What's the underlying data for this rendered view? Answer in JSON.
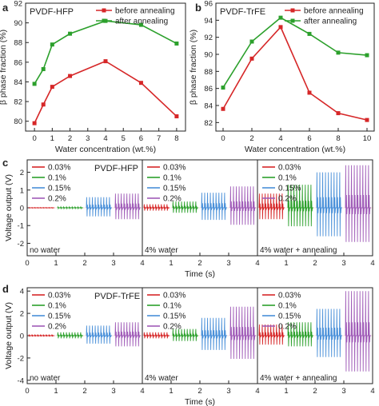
{
  "colors": {
    "red": "#d62728",
    "green": "#2ca02c",
    "blue": "#4a90d9",
    "purple": "#a05cb8"
  },
  "panels": {
    "a": {
      "letter": "a",
      "tag": "PVDF-HFP"
    },
    "b": {
      "letter": "b",
      "tag": "PVDF-TrFE"
    },
    "c": {
      "letter": "c",
      "tag": "PVDF-HFP"
    },
    "d": {
      "letter": "d",
      "tag": "PVDF-TrFE"
    }
  },
  "chart_data": [
    {
      "id": "a",
      "type": "line",
      "xlabel": "Water concentration (wt.%)",
      "ylabel": "β phase fraction (%)",
      "xlim": [
        -0.5,
        8.5
      ],
      "ylim": [
        79,
        92
      ],
      "xticks": [
        0,
        1,
        2,
        3,
        4,
        5,
        6,
        7,
        8
      ],
      "yticks": [
        80,
        82,
        84,
        86,
        88,
        90,
        92
      ],
      "legend": "top-right",
      "series": [
        {
          "name": "before annealing",
          "color": "#d62728",
          "x": [
            0,
            0.5,
            1,
            2,
            4,
            6,
            8
          ],
          "y": [
            79.8,
            81.7,
            83.5,
            84.6,
            86.1,
            83.9,
            80.5
          ]
        },
        {
          "name": "after annealing",
          "color": "#2ca02c",
          "x": [
            0,
            0.5,
            1,
            2,
            4,
            6,
            8
          ],
          "y": [
            83.8,
            85.3,
            87.8,
            88.9,
            90.2,
            89.8,
            87.9
          ]
        }
      ]
    },
    {
      "id": "b",
      "type": "line",
      "xlabel": "Water concentration (wt.%)",
      "ylabel": "β phase fraction (%)",
      "xlim": [
        -0.5,
        10.5
      ],
      "ylim": [
        81,
        96
      ],
      "xticks": [
        0,
        2,
        4,
        6,
        8,
        10
      ],
      "yticks": [
        82,
        84,
        86,
        88,
        90,
        92,
        94,
        96
      ],
      "legend": "top-right",
      "series": [
        {
          "name": "before annealing",
          "color": "#d62728",
          "x": [
            0,
            2,
            4,
            6,
            8,
            10
          ],
          "y": [
            83.6,
            89.5,
            93.2,
            85.5,
            83.1,
            82.3
          ]
        },
        {
          "name": "after annealing",
          "color": "#2ca02c",
          "x": [
            0,
            2,
            4,
            6,
            8,
            10
          ],
          "y": [
            86.1,
            91.5,
            94.3,
            92.4,
            90.2,
            89.9
          ]
        }
      ]
    },
    {
      "id": "c",
      "type": "line",
      "xlabel": "Time (s)",
      "ylabel": "Voltage output (V)",
      "ylim": [
        -2.7,
        2.7
      ],
      "yticks": [
        -2,
        -1,
        0,
        1,
        2
      ],
      "subpanels": [
        {
          "label": "no water",
          "xlim": [
            0,
            4
          ],
          "xticks": [
            0,
            1,
            2,
            3,
            4
          ],
          "amplitudes": [
            {
              "name": "0.03%",
              "x": [
                0,
                1
              ],
              "amp": 0.02
            },
            {
              "name": "0.1%",
              "x": [
                1,
                2
              ],
              "amp": 0.05
            },
            {
              "name": "0.15%",
              "x": [
                2,
                3
              ],
              "amp": 0.6
            },
            {
              "name": "0.2%",
              "x": [
                3,
                4
              ],
              "amp": 0.8
            }
          ]
        },
        {
          "label": "4% water",
          "xlim": [
            0,
            4
          ],
          "xticks": [
            1,
            2,
            3,
            4
          ],
          "amplitudes": [
            {
              "name": "0.03%",
              "x": [
                0,
                1
              ],
              "amp": 0.2
            },
            {
              "name": "0.1%",
              "x": [
                1,
                2
              ],
              "amp": 0.35
            },
            {
              "name": "0.15%",
              "x": [
                2,
                3
              ],
              "amp": 0.85
            },
            {
              "name": "0.2%",
              "x": [
                3,
                4
              ],
              "amp": 1.2
            }
          ]
        },
        {
          "label": "4% water + annealing",
          "xlim": [
            0,
            4
          ],
          "xticks": [
            1,
            2,
            3,
            4
          ],
          "amplitudes": [
            {
              "name": "0.03%",
              "x": [
                0,
                1
              ],
              "amp": 0.8
            },
            {
              "name": "0.1%",
              "x": [
                1,
                2
              ],
              "amp": 1.3
            },
            {
              "name": "0.15%",
              "x": [
                2,
                3
              ],
              "amp": 2.0
            },
            {
              "name": "0.2%",
              "x": [
                3,
                4
              ],
              "amp": 2.4
            }
          ]
        }
      ],
      "legend": [
        "0.03%",
        "0.1%",
        "0.15%",
        "0.2%"
      ]
    },
    {
      "id": "d",
      "type": "line",
      "xlabel": "Time (s)",
      "ylabel": "Voltage output (V)",
      "ylim": [
        -4.3,
        4.3
      ],
      "yticks": [
        -4,
        -2,
        0,
        2,
        4
      ],
      "subpanels": [
        {
          "label": "no water",
          "xlim": [
            0,
            4
          ],
          "xticks": [
            0,
            1,
            2,
            3,
            4
          ],
          "amplitudes": [
            {
              "name": "0.03%",
              "x": [
                0,
                1
              ],
              "amp": 0.1
            },
            {
              "name": "0.1%",
              "x": [
                1,
                2
              ],
              "amp": 0.3
            },
            {
              "name": "0.15%",
              "x": [
                2,
                3
              ],
              "amp": 0.9
            },
            {
              "name": "0.2%",
              "x": [
                3,
                4
              ],
              "amp": 1.2
            }
          ]
        },
        {
          "label": "4% water",
          "xlim": [
            0,
            4
          ],
          "xticks": [
            1,
            2,
            3,
            4
          ],
          "amplitudes": [
            {
              "name": "0.03%",
              "x": [
                0,
                1
              ],
              "amp": 0.3
            },
            {
              "name": "0.1%",
              "x": [
                1,
                2
              ],
              "amp": 0.6
            },
            {
              "name": "0.15%",
              "x": [
                2,
                3
              ],
              "amp": 1.6
            },
            {
              "name": "0.2%",
              "x": [
                3,
                4
              ],
              "amp": 2.6
            }
          ]
        },
        {
          "label": "4% water + annealing",
          "xlim": [
            0,
            4
          ],
          "xticks": [
            1,
            2,
            3,
            4
          ],
          "amplitudes": [
            {
              "name": "0.03%",
              "x": [
                0,
                1
              ],
              "amp": 1.0
            },
            {
              "name": "0.1%",
              "x": [
                1,
                2
              ],
              "amp": 1.2
            },
            {
              "name": "0.15%",
              "x": [
                2,
                3
              ],
              "amp": 2.4
            },
            {
              "name": "0.2%",
              "x": [
                3,
                4
              ],
              "amp": 4.0
            }
          ]
        }
      ],
      "legend": [
        "0.03%",
        "0.1%",
        "0.15%",
        "0.2%"
      ]
    }
  ]
}
